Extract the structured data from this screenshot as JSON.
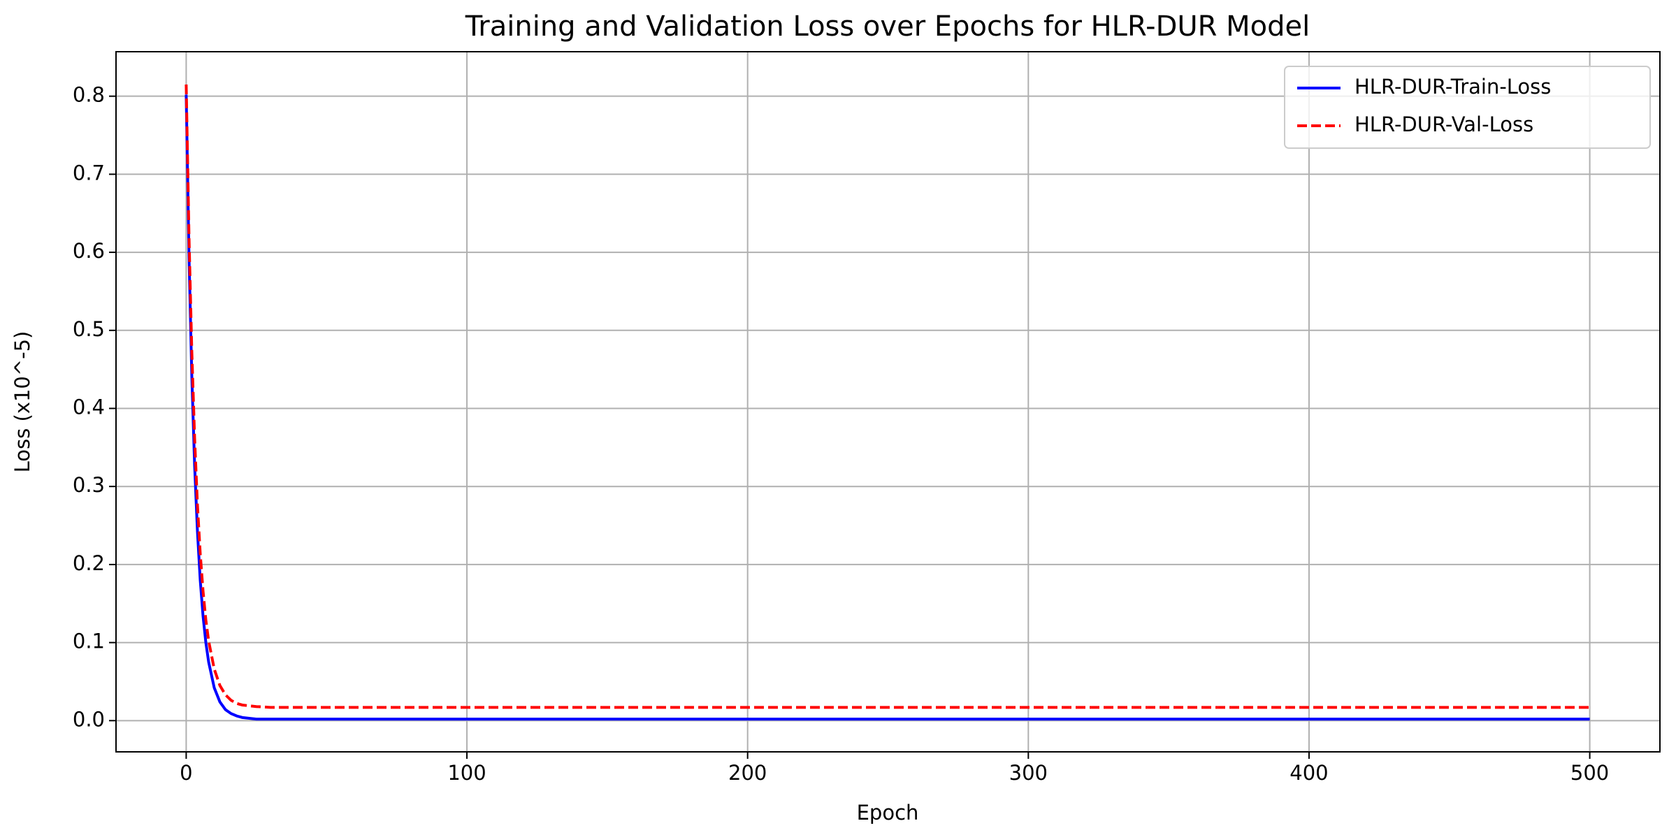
{
  "chart_data": {
    "type": "line",
    "title": "Training and Validation Loss over Epochs for HLR-DUR Model",
    "x_label": "Epoch",
    "y_label": "Loss (x10^-5)",
    "x": [
      0,
      1,
      2,
      3,
      4,
      5,
      6,
      7,
      8,
      10,
      12,
      14,
      16,
      18,
      20,
      25,
      30,
      40,
      50,
      100,
      200,
      300,
      400,
      500
    ],
    "series": [
      {
        "name": "HLR-DUR-Train-Loss",
        "color": "#0000ff",
        "dash": "solid",
        "values": [
          0.802,
          0.595,
          0.441,
          0.327,
          0.243,
          0.18,
          0.134,
          0.1,
          0.075,
          0.042,
          0.024,
          0.014,
          0.009,
          0.006,
          0.004,
          0.002,
          0.002,
          0.002,
          0.002,
          0.002,
          0.002,
          0.002,
          0.002,
          0.002
        ]
      },
      {
        "name": "HLR-DUR-Val-Loss",
        "color": "#ff0000",
        "dash": "dashed",
        "values": [
          0.815,
          0.62,
          0.473,
          0.362,
          0.277,
          0.214,
          0.166,
          0.129,
          0.102,
          0.066,
          0.045,
          0.033,
          0.026,
          0.022,
          0.02,
          0.018,
          0.017,
          0.017,
          0.017,
          0.017,
          0.017,
          0.017,
          0.017,
          0.017
        ]
      }
    ],
    "xlim": [
      -25,
      525
    ],
    "ylim": [
      -0.04,
      0.857
    ],
    "xticks": [
      0,
      100,
      200,
      300,
      400,
      500
    ],
    "yticks": [
      {
        "value": 0,
        "label": "0.0"
      },
      0.1,
      0.2,
      0.3,
      0.4,
      0.5,
      0.6,
      0.7,
      0.8
    ],
    "grid": true,
    "legend": "upper right"
  }
}
